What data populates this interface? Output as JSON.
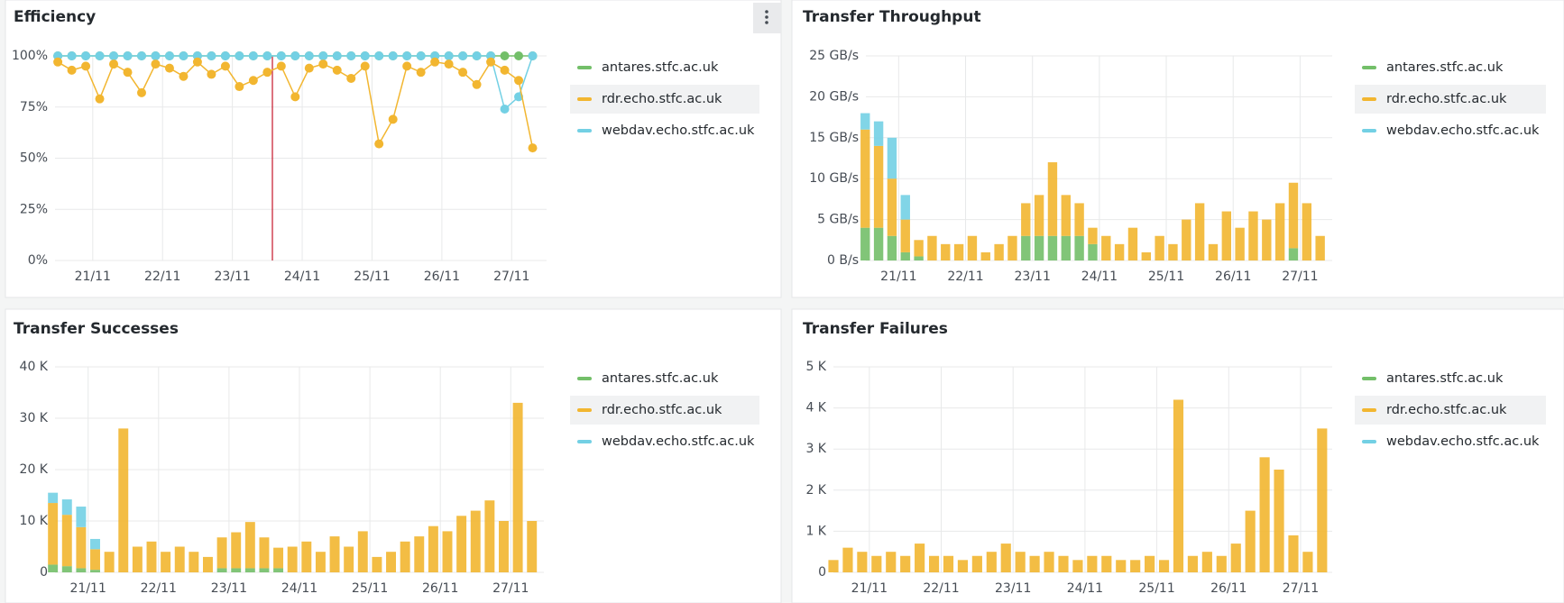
{
  "chart_data": [
    {
      "type": "line",
      "title": "Efficiency",
      "x": [
        20.5,
        20.7,
        20.9,
        21.1,
        21.3,
        21.5,
        21.7,
        21.9,
        22.1,
        22.3,
        22.5,
        22.7,
        22.9,
        23.1,
        23.3,
        23.5,
        23.7,
        23.9,
        24.1,
        24.3,
        24.5,
        24.7,
        24.9,
        25.1,
        25.3,
        25.5,
        25.7,
        25.9,
        26.1,
        26.3,
        26.5,
        26.7,
        26.9,
        27.1,
        27.3
      ],
      "xlim": [
        20.46,
        27.5
      ],
      "xticks": [
        {
          "value": 21,
          "label": "21/11"
        },
        {
          "value": 22,
          "label": "22/11"
        },
        {
          "value": 23,
          "label": "23/11"
        },
        {
          "value": 24,
          "label": "24/11"
        },
        {
          "value": 25,
          "label": "25/11"
        },
        {
          "value": 26,
          "label": "26/11"
        },
        {
          "value": 27,
          "label": "27/11"
        }
      ],
      "ylim": [
        0,
        100
      ],
      "yticks": [
        {
          "value": 0,
          "label": "0%"
        },
        {
          "value": 25,
          "label": "25%"
        },
        {
          "value": 50,
          "label": "50%"
        },
        {
          "value": 75,
          "label": "75%"
        },
        {
          "value": 100,
          "label": "100%"
        }
      ],
      "grid": true,
      "series": [
        {
          "name": "antares.stfc.ac.uk",
          "color": "#73bf69",
          "values": [
            100,
            100,
            100,
            100,
            100,
            100,
            100,
            100,
            100,
            100,
            100,
            100,
            100,
            100,
            100,
            100,
            100,
            100,
            100,
            100,
            100,
            100,
            100,
            100,
            100,
            100,
            100,
            100,
            100,
            100,
            100,
            100,
            100,
            100,
            100
          ]
        },
        {
          "name": "rdr.echo.stfc.ac.uk",
          "color": "#f2b630",
          "values": [
            97,
            93,
            95,
            79,
            96,
            92,
            82,
            96,
            94,
            90,
            97,
            91,
            95,
            85,
            88,
            92,
            95,
            80,
            94,
            96,
            93,
            89,
            95,
            57,
            69,
            95,
            92,
            97,
            96,
            92,
            86,
            97,
            93,
            88,
            55
          ]
        },
        {
          "name": "webdav.echo.stfc.ac.uk",
          "color": "#73d0e4",
          "values": [
            100,
            100,
            100,
            100,
            100,
            100,
            100,
            100,
            100,
            100,
            100,
            100,
            100,
            100,
            100,
            100,
            100,
            100,
            100,
            100,
            100,
            100,
            100,
            100,
            100,
            100,
            100,
            100,
            100,
            100,
            100,
            100,
            74,
            80,
            100
          ]
        }
      ]
    },
    {
      "type": "bar",
      "stacked": true,
      "title": "Transfer Throughput",
      "x": [
        20.5,
        20.7,
        20.9,
        21.1,
        21.3,
        21.5,
        21.7,
        21.9,
        22.1,
        22.3,
        22.5,
        22.7,
        22.9,
        23.1,
        23.3,
        23.5,
        23.7,
        23.9,
        24.1,
        24.3,
        24.5,
        24.7,
        24.9,
        25.1,
        25.3,
        25.5,
        25.7,
        25.9,
        26.1,
        26.3,
        26.5,
        26.7,
        26.9,
        27.1,
        27.3
      ],
      "xlim": [
        20.51,
        27.48
      ],
      "xticks": [
        {
          "value": 21,
          "label": "21/11"
        },
        {
          "value": 22,
          "label": "22/11"
        },
        {
          "value": 23,
          "label": "23/11"
        },
        {
          "value": 24,
          "label": "24/11"
        },
        {
          "value": 25,
          "label": "25/11"
        },
        {
          "value": 26,
          "label": "26/11"
        },
        {
          "value": 27,
          "label": "27/11"
        }
      ],
      "ylim": [
        0,
        25
      ],
      "yticks": [
        {
          "value": 0,
          "label": "0 B/s"
        },
        {
          "value": 5,
          "label": "5 GB/s"
        },
        {
          "value": 10,
          "label": "10 GB/s"
        },
        {
          "value": 15,
          "label": "15 GB/s"
        },
        {
          "value": 20,
          "label": "20 GB/s"
        },
        {
          "value": 25,
          "label": "25 GB/s"
        }
      ],
      "grid": true,
      "series": [
        {
          "name": "antares.stfc.ac.uk",
          "color": "#73bf69",
          "values": [
            4,
            4,
            3,
            1,
            0.5,
            0,
            0,
            0,
            0,
            0,
            0,
            0,
            3,
            3,
            3,
            3,
            3,
            2,
            0,
            0,
            0,
            0,
            0,
            0,
            0,
            0,
            0,
            0,
            0,
            0,
            0,
            0,
            1.5,
            0,
            0
          ]
        },
        {
          "name": "rdr.echo.stfc.ac.uk",
          "color": "#f2b630",
          "values": [
            12,
            10,
            7,
            4,
            2,
            3,
            2,
            2,
            3,
            1,
            2,
            3,
            4,
            5,
            9,
            5,
            4,
            2,
            3,
            2,
            4,
            1,
            3,
            2,
            5,
            7,
            2,
            6,
            4,
            6,
            5,
            7,
            8,
            7,
            3
          ]
        },
        {
          "name": "webdav.echo.stfc.ac.uk",
          "color": "#73d0e4",
          "values": [
            2,
            3,
            5,
            3,
            0,
            0,
            0,
            0,
            0,
            0,
            0,
            0,
            0,
            0,
            0,
            0,
            0,
            0,
            0,
            0,
            0,
            0,
            0,
            0,
            0,
            0,
            0,
            0,
            0,
            0,
            0,
            0,
            0,
            0,
            0
          ]
        }
      ]
    },
    {
      "type": "bar",
      "stacked": true,
      "title": "Transfer Successes",
      "x": [
        20.5,
        20.7,
        20.9,
        21.1,
        21.3,
        21.5,
        21.7,
        21.9,
        22.1,
        22.3,
        22.5,
        22.7,
        22.9,
        23.1,
        23.3,
        23.5,
        23.7,
        23.9,
        24.1,
        24.3,
        24.5,
        24.7,
        24.9,
        25.1,
        25.3,
        25.5,
        25.7,
        25.9,
        26.1,
        26.3,
        26.5,
        26.7,
        26.9,
        27.1,
        27.3
      ],
      "xlim": [
        20.53,
        27.47
      ],
      "xticks": [
        {
          "value": 21,
          "label": "21/11"
        },
        {
          "value": 22,
          "label": "22/11"
        },
        {
          "value": 23,
          "label": "23/11"
        },
        {
          "value": 24,
          "label": "24/11"
        },
        {
          "value": 25,
          "label": "25/11"
        },
        {
          "value": 26,
          "label": "26/11"
        },
        {
          "value": 27,
          "label": "27/11"
        }
      ],
      "ylim": [
        0,
        40000
      ],
      "yticks": [
        0,
        {
          "value": 10000,
          "label": "10 K"
        },
        {
          "value": 20000,
          "label": "20 K"
        },
        {
          "value": 30000,
          "label": "30 K"
        },
        {
          "value": 40000,
          "label": "40 K"
        }
      ],
      "grid": true,
      "series": [
        {
          "name": "antares.stfc.ac.uk",
          "color": "#73bf69",
          "values": [
            1500,
            1200,
            800,
            500,
            0,
            0,
            0,
            0,
            0,
            0,
            0,
            0,
            800,
            800,
            800,
            800,
            800,
            0,
            0,
            0,
            0,
            0,
            0,
            0,
            0,
            0,
            0,
            0,
            0,
            0,
            0,
            0,
            0,
            0,
            0
          ]
        },
        {
          "name": "rdr.echo.stfc.ac.uk",
          "color": "#f2b630",
          "values": [
            12000,
            10000,
            8000,
            4000,
            4000,
            28000,
            5000,
            6000,
            4000,
            5000,
            4000,
            3000,
            6000,
            7000,
            9000,
            6000,
            4000,
            5000,
            6000,
            4000,
            7000,
            5000,
            8000,
            3000,
            4000,
            6000,
            7000,
            9000,
            8000,
            11000,
            12000,
            14000,
            10000,
            33000,
            10000
          ]
        },
        {
          "name": "webdav.echo.stfc.ac.uk",
          "color": "#73d0e4",
          "values": [
            2000,
            3000,
            4000,
            2000,
            0,
            0,
            0,
            0,
            0,
            0,
            0,
            0,
            0,
            0,
            0,
            0,
            0,
            0,
            0,
            0,
            0,
            0,
            0,
            0,
            0,
            0,
            0,
            0,
            0,
            0,
            0,
            0,
            0,
            0,
            0
          ]
        }
      ]
    },
    {
      "type": "bar",
      "stacked": true,
      "title": "Transfer Failures",
      "x": [
        20.5,
        20.7,
        20.9,
        21.1,
        21.3,
        21.5,
        21.7,
        21.9,
        22.1,
        22.3,
        22.5,
        22.7,
        22.9,
        23.1,
        23.3,
        23.5,
        23.7,
        23.9,
        24.1,
        24.3,
        24.5,
        24.7,
        24.9,
        25.1,
        25.3,
        25.5,
        25.7,
        25.9,
        26.1,
        26.3,
        26.5,
        26.7,
        26.9,
        27.1,
        27.3
      ],
      "xlim": [
        20.5,
        27.44
      ],
      "xticks": [
        {
          "value": 21,
          "label": "21/11"
        },
        {
          "value": 22,
          "label": "22/11"
        },
        {
          "value": 23,
          "label": "23/11"
        },
        {
          "value": 24,
          "label": "24/11"
        },
        {
          "value": 25,
          "label": "25/11"
        },
        {
          "value": 26,
          "label": "26/11"
        },
        {
          "value": 27,
          "label": "27/11"
        }
      ],
      "ylim": [
        0,
        5000
      ],
      "yticks": [
        0,
        {
          "value": 1000,
          "label": "1 K"
        },
        {
          "value": 2000,
          "label": "2 K"
        },
        {
          "value": 3000,
          "label": "3 K"
        },
        {
          "value": 4000,
          "label": "4 K"
        },
        {
          "value": 5000,
          "label": "5 K"
        }
      ],
      "grid": true,
      "series": [
        {
          "name": "antares.stfc.ac.uk",
          "color": "#73bf69",
          "values": [
            0,
            0,
            0,
            0,
            0,
            0,
            0,
            0,
            0,
            0,
            0,
            0,
            0,
            0,
            0,
            0,
            0,
            0,
            0,
            0,
            0,
            0,
            0,
            0,
            0,
            0,
            0,
            0,
            0,
            0,
            0,
            0,
            0,
            0,
            0
          ]
        },
        {
          "name": "rdr.echo.stfc.ac.uk",
          "color": "#f2b630",
          "values": [
            300,
            600,
            500,
            400,
            500,
            400,
            700,
            400,
            400,
            300,
            400,
            500,
            700,
            500,
            400,
            500,
            400,
            300,
            400,
            400,
            300,
            300,
            400,
            300,
            4200,
            400,
            500,
            400,
            700,
            1500,
            2800,
            2500,
            900,
            500,
            3500
          ]
        },
        {
          "name": "webdav.echo.stfc.ac.uk",
          "color": "#73d0e4",
          "values": [
            0,
            0,
            0,
            0,
            0,
            0,
            0,
            0,
            0,
            0,
            0,
            0,
            0,
            0,
            0,
            0,
            0,
            0,
            0,
            0,
            0,
            0,
            0,
            0,
            0,
            0,
            0,
            0,
            0,
            0,
            0,
            0,
            0,
            0,
            0
          ]
        }
      ]
    }
  ]
}
